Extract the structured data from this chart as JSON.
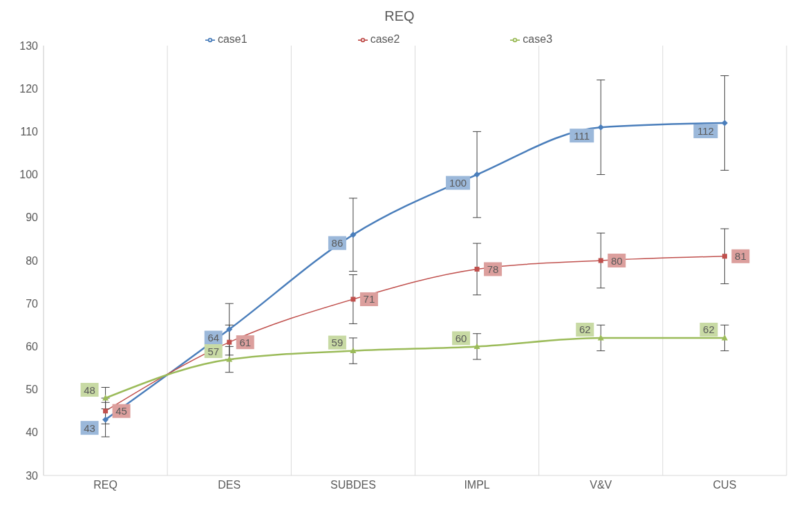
{
  "chart_data": {
    "type": "line",
    "title": "REQ",
    "categories": [
      "REQ",
      "DES",
      "SUBDES",
      "IMPL",
      "V&V",
      "CUS"
    ],
    "series": [
      {
        "name": "case1",
        "color": "#4a7ebb",
        "marker": "diamond",
        "values": [
          43,
          64,
          86,
          100,
          111,
          112
        ],
        "errors": [
          4,
          6,
          8.5,
          10,
          11,
          11
        ]
      },
      {
        "name": "case2",
        "color": "#c0504d",
        "marker": "square",
        "values": [
          45,
          61,
          71,
          78,
          80,
          81
        ],
        "errors": [
          3,
          4,
          5.7,
          6,
          6.4,
          6.4
        ]
      },
      {
        "name": "case3",
        "color": "#9bbb59",
        "marker": "triangle",
        "values": [
          48,
          57,
          59,
          60,
          62,
          62
        ],
        "errors": [
          2.5,
          3,
          3,
          3,
          3,
          3
        ]
      }
    ],
    "ylim": [
      30,
      130
    ],
    "yticks": [
      30,
      40,
      50,
      60,
      70,
      80,
      90,
      100,
      110,
      120,
      130
    ],
    "grid": "x",
    "legend": "top",
    "data_labels": true
  }
}
